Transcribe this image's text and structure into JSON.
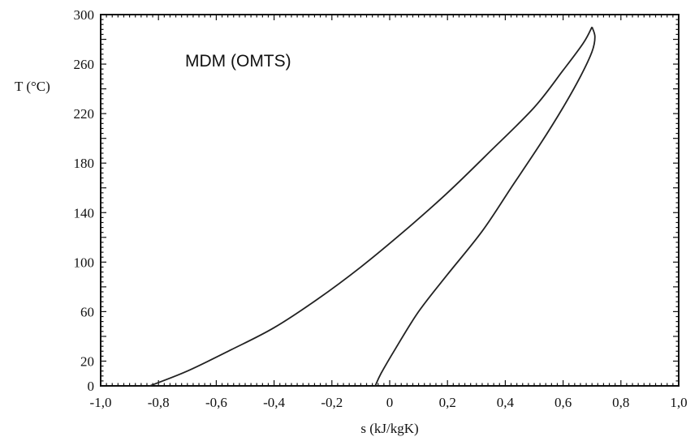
{
  "chart_data": {
    "type": "line",
    "title": "MDM (OMTS)",
    "xlabel": "s (kJ/kgK)",
    "ylabel": "T (°C)",
    "xlim": [
      -1.0,
      1.0
    ],
    "ylim": [
      0,
      300
    ],
    "x_tick_labels": [
      "-1,0",
      "-0,8",
      "-0,6",
      "-0,4",
      "-0,2",
      "0",
      "0,2",
      "0,4",
      "0,6",
      "0,8",
      "1,0"
    ],
    "y_tick_labels": [
      "0",
      "20",
      "60",
      "100",
      "140",
      "180",
      "220",
      "260",
      "300"
    ],
    "y_tick_values": [
      0,
      20,
      60,
      100,
      140,
      180,
      220,
      260,
      300
    ],
    "grid": false,
    "legend": "none",
    "series": [
      {
        "role": "saturated-liquid",
        "x": [
          -0.83,
          -0.7,
          -0.55,
          -0.4,
          -0.25,
          -0.1,
          0.05,
          0.2,
          0.35,
          0.5,
          0.6,
          0.67,
          0.7
        ],
        "y": [
          0,
          12,
          29,
          47,
          70,
          96,
          125,
          156,
          190,
          225,
          255,
          277,
          290
        ]
      },
      {
        "role": "saturated-vapor",
        "x": [
          0.7,
          0.71,
          0.7,
          0.66,
          0.6,
          0.52,
          0.42,
          0.32,
          0.2,
          0.1,
          0.02,
          -0.03,
          -0.05
        ],
        "y": [
          290,
          282,
          270,
          250,
          225,
          195,
          160,
          125,
          90,
          60,
          30,
          10,
          0
        ]
      }
    ]
  }
}
